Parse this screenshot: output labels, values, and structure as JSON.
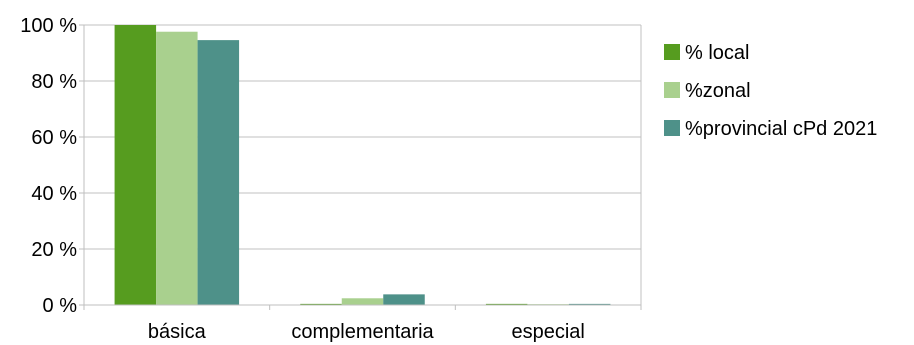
{
  "chart_data": {
    "type": "bar",
    "categories": [
      "básica",
      "complementaria",
      "especial"
    ],
    "series": [
      {
        "name": "% local",
        "color": "#569c1f",
        "values": [
          100,
          0.4,
          0.4
        ]
      },
      {
        "name": "%zonal",
        "color": "#a9d08e",
        "values": [
          97.6,
          2.4,
          0.3
        ]
      },
      {
        "name": "%provincial cPd 2021",
        "color": "#4e9189",
        "values": [
          94.6,
          3.8,
          0.4
        ]
      }
    ],
    "ylim": [
      0,
      100
    ],
    "yticks": [
      0,
      20,
      40,
      60,
      80,
      100
    ],
    "ytick_labels": [
      "0 %",
      "20 %",
      "40 %",
      "60 %",
      "80 %",
      "100 %"
    ],
    "grid": true,
    "legend_position": "right",
    "gridline_color": "#c0c0c0",
    "axis_color": "#bfbfbf"
  }
}
